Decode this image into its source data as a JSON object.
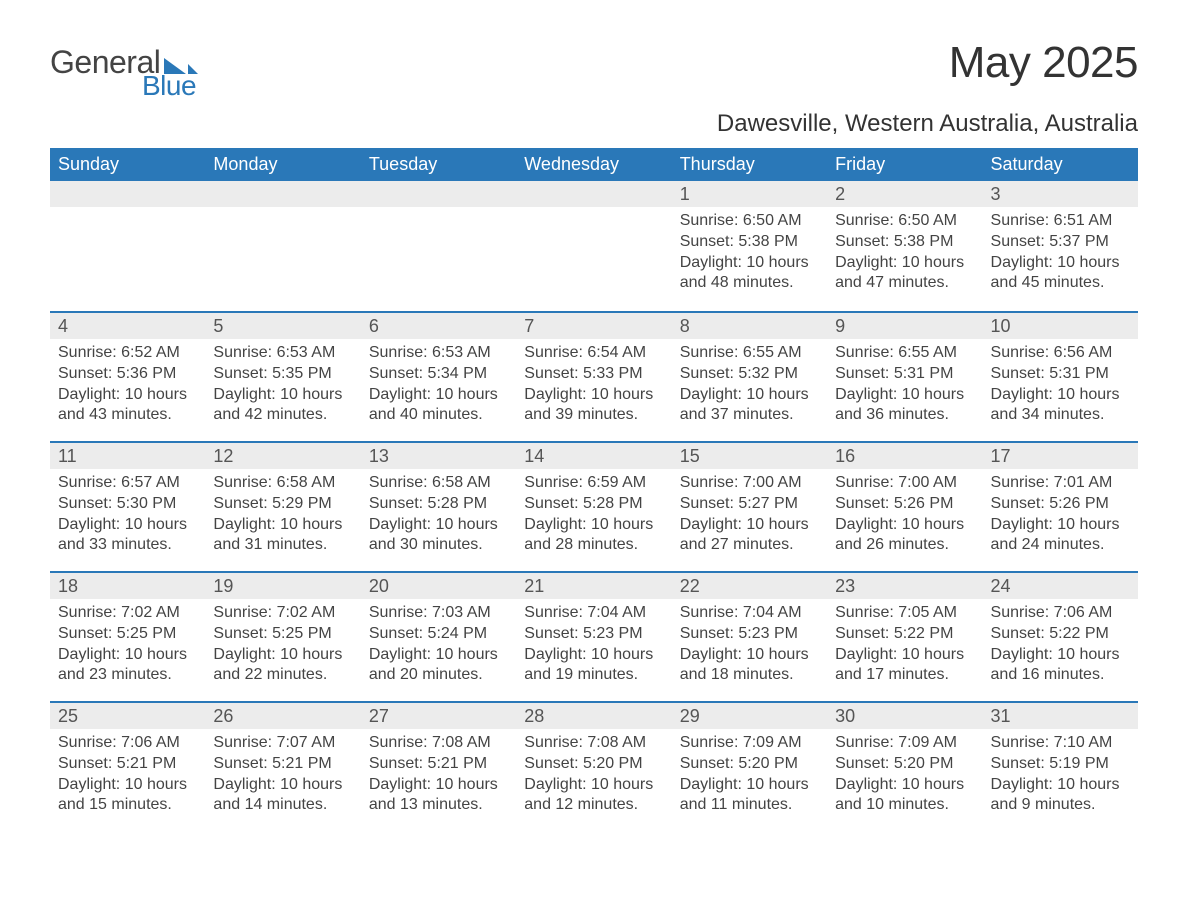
{
  "logo": {
    "text1": "General",
    "text2": "Blue",
    "tri_color": "#2a78b8"
  },
  "title": "May 2025",
  "location": "Dawesville, Western Australia, Australia",
  "colors": {
    "header_bg": "#2a78b8",
    "header_text": "#ffffff",
    "daynum_bg": "#ececec",
    "row_border": "#2a78b8",
    "body_text": "#444444",
    "page_bg": "#ffffff"
  },
  "fonts": {
    "title_size_pt": 33,
    "location_size_pt": 18,
    "weekday_size_pt": 14,
    "body_size_pt": 12
  },
  "weekdays": [
    "Sunday",
    "Monday",
    "Tuesday",
    "Wednesday",
    "Thursday",
    "Friday",
    "Saturday"
  ],
  "labels": {
    "sunrise": "Sunrise: ",
    "sunset": "Sunset: ",
    "daylight": "Daylight: "
  },
  "weeks": [
    [
      {
        "day": null
      },
      {
        "day": null
      },
      {
        "day": null
      },
      {
        "day": null
      },
      {
        "day": "1",
        "sunrise": "6:50 AM",
        "sunset": "5:38 PM",
        "daylight": "10 hours and 48 minutes."
      },
      {
        "day": "2",
        "sunrise": "6:50 AM",
        "sunset": "5:38 PM",
        "daylight": "10 hours and 47 minutes."
      },
      {
        "day": "3",
        "sunrise": "6:51 AM",
        "sunset": "5:37 PM",
        "daylight": "10 hours and 45 minutes."
      }
    ],
    [
      {
        "day": "4",
        "sunrise": "6:52 AM",
        "sunset": "5:36 PM",
        "daylight": "10 hours and 43 minutes."
      },
      {
        "day": "5",
        "sunrise": "6:53 AM",
        "sunset": "5:35 PM",
        "daylight": "10 hours and 42 minutes."
      },
      {
        "day": "6",
        "sunrise": "6:53 AM",
        "sunset": "5:34 PM",
        "daylight": "10 hours and 40 minutes."
      },
      {
        "day": "7",
        "sunrise": "6:54 AM",
        "sunset": "5:33 PM",
        "daylight": "10 hours and 39 minutes."
      },
      {
        "day": "8",
        "sunrise": "6:55 AM",
        "sunset": "5:32 PM",
        "daylight": "10 hours and 37 minutes."
      },
      {
        "day": "9",
        "sunrise": "6:55 AM",
        "sunset": "5:31 PM",
        "daylight": "10 hours and 36 minutes."
      },
      {
        "day": "10",
        "sunrise": "6:56 AM",
        "sunset": "5:31 PM",
        "daylight": "10 hours and 34 minutes."
      }
    ],
    [
      {
        "day": "11",
        "sunrise": "6:57 AM",
        "sunset": "5:30 PM",
        "daylight": "10 hours and 33 minutes."
      },
      {
        "day": "12",
        "sunrise": "6:58 AM",
        "sunset": "5:29 PM",
        "daylight": "10 hours and 31 minutes."
      },
      {
        "day": "13",
        "sunrise": "6:58 AM",
        "sunset": "5:28 PM",
        "daylight": "10 hours and 30 minutes."
      },
      {
        "day": "14",
        "sunrise": "6:59 AM",
        "sunset": "5:28 PM",
        "daylight": "10 hours and 28 minutes."
      },
      {
        "day": "15",
        "sunrise": "7:00 AM",
        "sunset": "5:27 PM",
        "daylight": "10 hours and 27 minutes."
      },
      {
        "day": "16",
        "sunrise": "7:00 AM",
        "sunset": "5:26 PM",
        "daylight": "10 hours and 26 minutes."
      },
      {
        "day": "17",
        "sunrise": "7:01 AM",
        "sunset": "5:26 PM",
        "daylight": "10 hours and 24 minutes."
      }
    ],
    [
      {
        "day": "18",
        "sunrise": "7:02 AM",
        "sunset": "5:25 PM",
        "daylight": "10 hours and 23 minutes."
      },
      {
        "day": "19",
        "sunrise": "7:02 AM",
        "sunset": "5:25 PM",
        "daylight": "10 hours and 22 minutes."
      },
      {
        "day": "20",
        "sunrise": "7:03 AM",
        "sunset": "5:24 PM",
        "daylight": "10 hours and 20 minutes."
      },
      {
        "day": "21",
        "sunrise": "7:04 AM",
        "sunset": "5:23 PM",
        "daylight": "10 hours and 19 minutes."
      },
      {
        "day": "22",
        "sunrise": "7:04 AM",
        "sunset": "5:23 PM",
        "daylight": "10 hours and 18 minutes."
      },
      {
        "day": "23",
        "sunrise": "7:05 AM",
        "sunset": "5:22 PM",
        "daylight": "10 hours and 17 minutes."
      },
      {
        "day": "24",
        "sunrise": "7:06 AM",
        "sunset": "5:22 PM",
        "daylight": "10 hours and 16 minutes."
      }
    ],
    [
      {
        "day": "25",
        "sunrise": "7:06 AM",
        "sunset": "5:21 PM",
        "daylight": "10 hours and 15 minutes."
      },
      {
        "day": "26",
        "sunrise": "7:07 AM",
        "sunset": "5:21 PM",
        "daylight": "10 hours and 14 minutes."
      },
      {
        "day": "27",
        "sunrise": "7:08 AM",
        "sunset": "5:21 PM",
        "daylight": "10 hours and 13 minutes."
      },
      {
        "day": "28",
        "sunrise": "7:08 AM",
        "sunset": "5:20 PM",
        "daylight": "10 hours and 12 minutes."
      },
      {
        "day": "29",
        "sunrise": "7:09 AM",
        "sunset": "5:20 PM",
        "daylight": "10 hours and 11 minutes."
      },
      {
        "day": "30",
        "sunrise": "7:09 AM",
        "sunset": "5:20 PM",
        "daylight": "10 hours and 10 minutes."
      },
      {
        "day": "31",
        "sunrise": "7:10 AM",
        "sunset": "5:19 PM",
        "daylight": "10 hours and 9 minutes."
      }
    ]
  ]
}
